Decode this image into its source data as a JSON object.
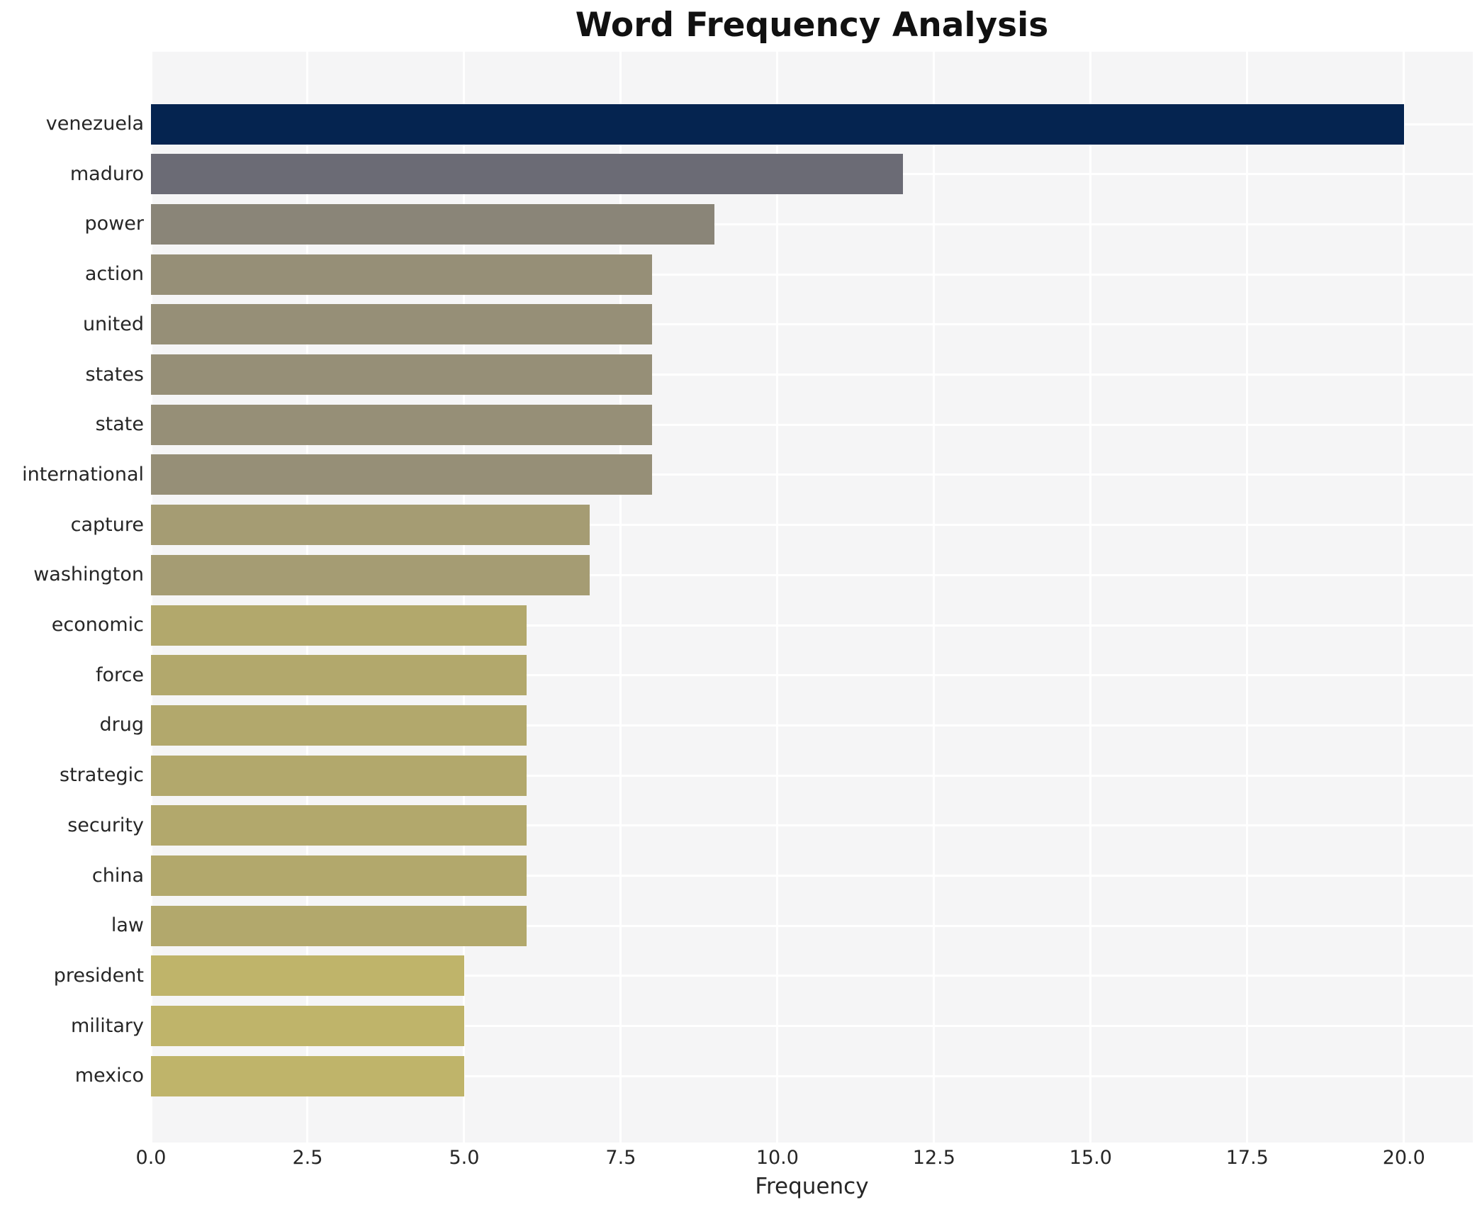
{
  "chart_data": {
    "type": "bar",
    "orientation": "horizontal",
    "title": "Word Frequency Analysis",
    "xlabel": "Frequency",
    "ylabel": "",
    "categories": [
      "venezuela",
      "maduro",
      "power",
      "action",
      "united",
      "states",
      "state",
      "international",
      "capture",
      "washington",
      "economic",
      "force",
      "drug",
      "strategic",
      "security",
      "china",
      "law",
      "president",
      "military",
      "mexico"
    ],
    "values": [
      20,
      12,
      9,
      8,
      8,
      8,
      8,
      8,
      7,
      7,
      6,
      6,
      6,
      6,
      6,
      6,
      6,
      5,
      5,
      5
    ],
    "bar_colors": [
      "#052450",
      "#6b6b75",
      "#8a8578",
      "#968f77",
      "#968f77",
      "#968f77",
      "#968f77",
      "#968f77",
      "#a59c73",
      "#a59c73",
      "#b2a86c",
      "#b2a86c",
      "#b2a86c",
      "#b2a86c",
      "#b2a86c",
      "#b2a86c",
      "#b2a86c",
      "#bfb46a",
      "#bfb46a",
      "#bfb46a"
    ],
    "xticks": [
      0,
      2.5,
      5,
      7.5,
      10,
      12.5,
      15,
      17.5,
      20
    ],
    "xtick_labels": [
      "0.0",
      "2.5",
      "5.0",
      "7.5",
      "10.0",
      "12.5",
      "15.0",
      "17.5",
      "20.0"
    ],
    "xlim": [
      0,
      21.1
    ],
    "grid": "on",
    "legend": "none"
  },
  "style": {
    "page_bg": "#ffffff",
    "plot_bg": "#f5f5f6",
    "grid_color": "#ffffff",
    "title_color": "#111111",
    "label_color": "#262626"
  }
}
